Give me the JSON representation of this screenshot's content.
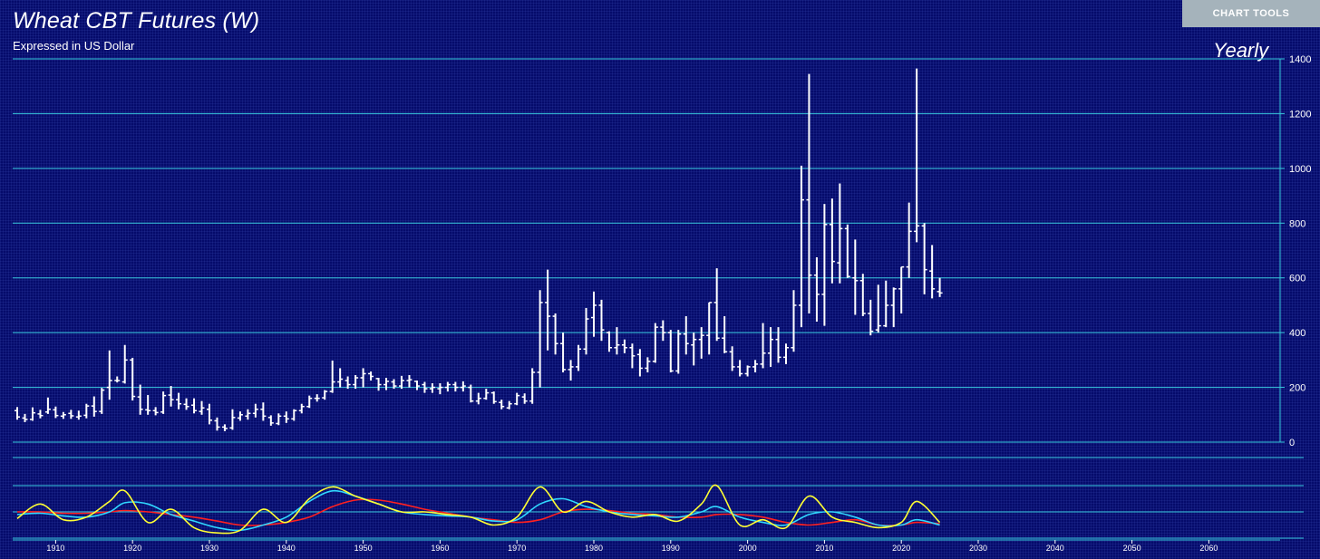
{
  "header": {
    "title": "Wheat CBT Futures (W)",
    "subtitle": "Expressed in US Dollar",
    "period": "Yearly"
  },
  "toolbar": {
    "chart_tools_label": "CHART TOOLS"
  },
  "colors": {
    "background": "#050b6b",
    "gridline": "#38c8dc",
    "price_bar": "#ffffff",
    "oscillator_fast": "#ffff33",
    "oscillator_medium": "#30d8ff",
    "oscillator_slow": "#ff2020"
  },
  "chart_data": [
    {
      "type": "bar",
      "subtype": "ohlc",
      "title": "Wheat CBT Futures (W)",
      "ylim": [
        0,
        1400
      ],
      "yticks": [
        0,
        200,
        400,
        600,
        800,
        1000,
        1200,
        1400
      ],
      "y_axis_side": "right",
      "grid": true,
      "ohlc": [
        [
          1905,
          115,
          128,
          82,
          92
        ],
        [
          1906,
          88,
          103,
          73,
          83
        ],
        [
          1907,
          83,
          127,
          78,
          107
        ],
        [
          1908,
          103,
          118,
          87,
          97
        ],
        [
          1909,
          110,
          163,
          103,
          120
        ],
        [
          1910,
          118,
          130,
          88,
          97
        ],
        [
          1911,
          95,
          110,
          85,
          100
        ],
        [
          1912,
          105,
          118,
          85,
          96
        ],
        [
          1913,
          92,
          115,
          82,
          95
        ],
        [
          1914,
          98,
          140,
          87,
          132
        ],
        [
          1915,
          132,
          167,
          93,
          112
        ],
        [
          1916,
          112,
          198,
          103,
          190
        ],
        [
          1917,
          200,
          335,
          155,
          225
        ],
        [
          1918,
          225,
          240,
          218,
          225
        ],
        [
          1919,
          220,
          355,
          214,
          300
        ],
        [
          1920,
          300,
          308,
          152,
          167
        ],
        [
          1921,
          165,
          210,
          100,
          120
        ],
        [
          1922,
          118,
          172,
          100,
          115
        ],
        [
          1923,
          115,
          128,
          98,
          108
        ],
        [
          1924,
          110,
          185,
          103,
          170
        ],
        [
          1925,
          172,
          205,
          130,
          155
        ],
        [
          1926,
          155,
          180,
          120,
          140
        ],
        [
          1927,
          138,
          160,
          118,
          130
        ],
        [
          1928,
          135,
          160,
          105,
          115
        ],
        [
          1929,
          112,
          150,
          100,
          125
        ],
        [
          1930,
          120,
          140,
          65,
          80
        ],
        [
          1931,
          78,
          90,
          42,
          55
        ],
        [
          1932,
          55,
          65,
          40,
          50
        ],
        [
          1933,
          52,
          120,
          45,
          90
        ],
        [
          1934,
          88,
          112,
          78,
          100
        ],
        [
          1935,
          95,
          120,
          82,
          105
        ],
        [
          1936,
          105,
          140,
          90,
          120
        ],
        [
          1937,
          120,
          145,
          78,
          95
        ],
        [
          1938,
          90,
          98,
          60,
          70
        ],
        [
          1939,
          68,
          105,
          62,
          95
        ],
        [
          1940,
          95,
          112,
          70,
          85
        ],
        [
          1941,
          85,
          120,
          78,
          115
        ],
        [
          1942,
          115,
          140,
          105,
          130
        ],
        [
          1943,
          130,
          170,
          125,
          160
        ],
        [
          1944,
          160,
          175,
          148,
          160
        ],
        [
          1945,
          162,
          190,
          155,
          185
        ],
        [
          1946,
          185,
          298,
          180,
          220
        ],
        [
          1947,
          220,
          270,
          200,
          230
        ],
        [
          1948,
          225,
          240,
          195,
          210
        ],
        [
          1949,
          210,
          245,
          195,
          235
        ],
        [
          1950,
          235,
          270,
          200,
          250
        ],
        [
          1951,
          250,
          258,
          225,
          240
        ],
        [
          1952,
          232,
          235,
          188,
          210
        ],
        [
          1953,
          210,
          235,
          190,
          222
        ],
        [
          1954,
          220,
          230,
          195,
          205
        ],
        [
          1955,
          205,
          242,
          195,
          225
        ],
        [
          1956,
          225,
          245,
          200,
          228
        ],
        [
          1957,
          222,
          225,
          190,
          205
        ],
        [
          1958,
          210,
          220,
          180,
          195
        ],
        [
          1959,
          195,
          215,
          180,
          200
        ],
        [
          1960,
          195,
          215,
          175,
          200
        ],
        [
          1961,
          200,
          220,
          185,
          210
        ],
        [
          1962,
          210,
          220,
          185,
          200
        ],
        [
          1963,
          200,
          222,
          185,
          205
        ],
        [
          1964,
          200,
          210,
          145,
          150
        ],
        [
          1965,
          150,
          180,
          138,
          160
        ],
        [
          1966,
          160,
          195,
          155,
          180
        ],
        [
          1967,
          180,
          185,
          140,
          148
        ],
        [
          1968,
          145,
          155,
          120,
          130
        ],
        [
          1969,
          125,
          150,
          120,
          140
        ],
        [
          1970,
          140,
          180,
          135,
          170
        ],
        [
          1971,
          165,
          178,
          140,
          150
        ],
        [
          1972,
          150,
          270,
          140,
          255
        ],
        [
          1973,
          255,
          555,
          200,
          510
        ],
        [
          1974,
          510,
          630,
          335,
          460
        ],
        [
          1975,
          460,
          470,
          320,
          360
        ],
        [
          1976,
          360,
          400,
          255,
          265
        ],
        [
          1977,
          265,
          300,
          225,
          275
        ],
        [
          1978,
          275,
          355,
          260,
          340
        ],
        [
          1979,
          340,
          490,
          320,
          450
        ],
        [
          1980,
          455,
          550,
          385,
          500
        ],
        [
          1981,
          500,
          520,
          370,
          410
        ],
        [
          1982,
          400,
          405,
          330,
          345
        ],
        [
          1983,
          345,
          420,
          320,
          355
        ],
        [
          1984,
          355,
          375,
          325,
          345
        ],
        [
          1985,
          345,
          360,
          270,
          315
        ],
        [
          1986,
          320,
          340,
          240,
          270
        ],
        [
          1987,
          270,
          310,
          255,
          295
        ],
        [
          1988,
          295,
          435,
          290,
          420
        ],
        [
          1989,
          420,
          445,
          370,
          400
        ],
        [
          1990,
          400,
          410,
          255,
          260
        ],
        [
          1991,
          260,
          410,
          250,
          395
        ],
        [
          1992,
          395,
          460,
          320,
          360
        ],
        [
          1993,
          355,
          400,
          280,
          375
        ],
        [
          1994,
          375,
          420,
          305,
          390
        ],
        [
          1995,
          390,
          510,
          320,
          510
        ],
        [
          1996,
          510,
          635,
          370,
          380
        ],
        [
          1997,
          380,
          460,
          325,
          330
        ],
        [
          1998,
          330,
          350,
          260,
          275
        ],
        [
          1999,
          275,
          300,
          240,
          250
        ],
        [
          2000,
          250,
          280,
          240,
          275
        ],
        [
          2001,
          275,
          300,
          255,
          285
        ],
        [
          2002,
          285,
          435,
          270,
          325
        ],
        [
          2003,
          325,
          420,
          275,
          375
        ],
        [
          2004,
          375,
          420,
          290,
          310
        ],
        [
          2005,
          310,
          360,
          285,
          345
        ],
        [
          2006,
          345,
          555,
          330,
          500
        ],
        [
          2007,
          500,
          1010,
          420,
          885
        ],
        [
          2008,
          885,
          1345,
          470,
          610
        ],
        [
          2009,
          610,
          675,
          440,
          540
        ],
        [
          2010,
          540,
          870,
          425,
          795
        ],
        [
          2011,
          795,
          890,
          580,
          660
        ],
        [
          2012,
          655,
          945,
          580,
          780
        ],
        [
          2013,
          780,
          795,
          600,
          605
        ],
        [
          2014,
          600,
          740,
          465,
          590
        ],
        [
          2015,
          590,
          615,
          460,
          470
        ],
        [
          2016,
          470,
          520,
          390,
          405
        ],
        [
          2017,
          410,
          575,
          400,
          425
        ],
        [
          2018,
          425,
          590,
          420,
          500
        ],
        [
          2019,
          500,
          565,
          420,
          560
        ],
        [
          2020,
          560,
          640,
          470,
          640
        ],
        [
          2021,
          640,
          875,
          600,
          770
        ],
        [
          2022,
          770,
          1365,
          730,
          790
        ],
        [
          2023,
          790,
          800,
          540,
          630
        ],
        [
          2024,
          625,
          720,
          525,
          560
        ],
        [
          2025,
          550,
          600,
          530,
          545
        ]
      ]
    },
    {
      "type": "line",
      "title": "",
      "ylim": [
        -1,
        1
      ],
      "grid": true,
      "x": [
        1905,
        1908,
        1911,
        1914,
        1917,
        1919,
        1922,
        1925,
        1928,
        1931,
        1934,
        1937,
        1940,
        1943,
        1946,
        1949,
        1952,
        1955,
        1958,
        1961,
        1964,
        1967,
        1970,
        1973,
        1976,
        1979,
        1982,
        1985,
        1988,
        1991,
        1994,
        1996,
        1999,
        2002,
        2005,
        2008,
        2011,
        2014,
        2017,
        2020,
        2022,
        2025
      ],
      "xticks": [
        1910,
        1920,
        1930,
        1940,
        1950,
        1960,
        1970,
        1980,
        1990,
        2000,
        2010,
        2020,
        2030,
        2040,
        2050,
        2060
      ],
      "xlim": [
        1904,
        2068
      ],
      "series": [
        {
          "values": [
            -0.25,
            0.3,
            -0.3,
            -0.2,
            0.4,
            0.8,
            -0.4,
            0.1,
            -0.6,
            -0.8,
            -0.7,
            0.1,
            -0.4,
            0.5,
            0.95,
            0.6,
            0.3,
            0.0,
            0.0,
            -0.1,
            -0.2,
            -0.5,
            -0.2,
            0.95,
            0.0,
            0.4,
            0.0,
            -0.2,
            -0.1,
            -0.35,
            0.3,
            1.0,
            -0.5,
            -0.3,
            -0.6,
            0.6,
            -0.2,
            -0.4,
            -0.6,
            -0.4,
            0.4,
            -0.4
          ]
        },
        {
          "values": [
            -0.1,
            -0.05,
            -0.15,
            -0.2,
            0.0,
            0.35,
            0.3,
            -0.1,
            -0.35,
            -0.6,
            -0.7,
            -0.5,
            -0.2,
            0.4,
            0.8,
            0.6,
            0.3,
            0.0,
            -0.1,
            -0.15,
            -0.2,
            -0.35,
            -0.3,
            0.3,
            0.5,
            0.2,
            0.0,
            -0.1,
            -0.15,
            -0.2,
            0.0,
            0.2,
            -0.2,
            -0.4,
            -0.5,
            -0.1,
            0.0,
            -0.2,
            -0.5,
            -0.5,
            -0.3,
            -0.5
          ]
        },
        {
          "values": [
            0.0,
            0.0,
            -0.05,
            -0.05,
            0.0,
            0.05,
            0.0,
            -0.1,
            -0.2,
            -0.35,
            -0.5,
            -0.5,
            -0.4,
            -0.2,
            0.2,
            0.45,
            0.45,
            0.3,
            0.1,
            -0.05,
            -0.2,
            -0.3,
            -0.4,
            -0.3,
            0.0,
            0.1,
            0.05,
            -0.05,
            -0.1,
            -0.2,
            -0.2,
            -0.1,
            -0.1,
            -0.2,
            -0.4,
            -0.5,
            -0.4,
            -0.3,
            -0.5,
            -0.5,
            -0.4,
            -0.45
          ]
        }
      ]
    }
  ]
}
